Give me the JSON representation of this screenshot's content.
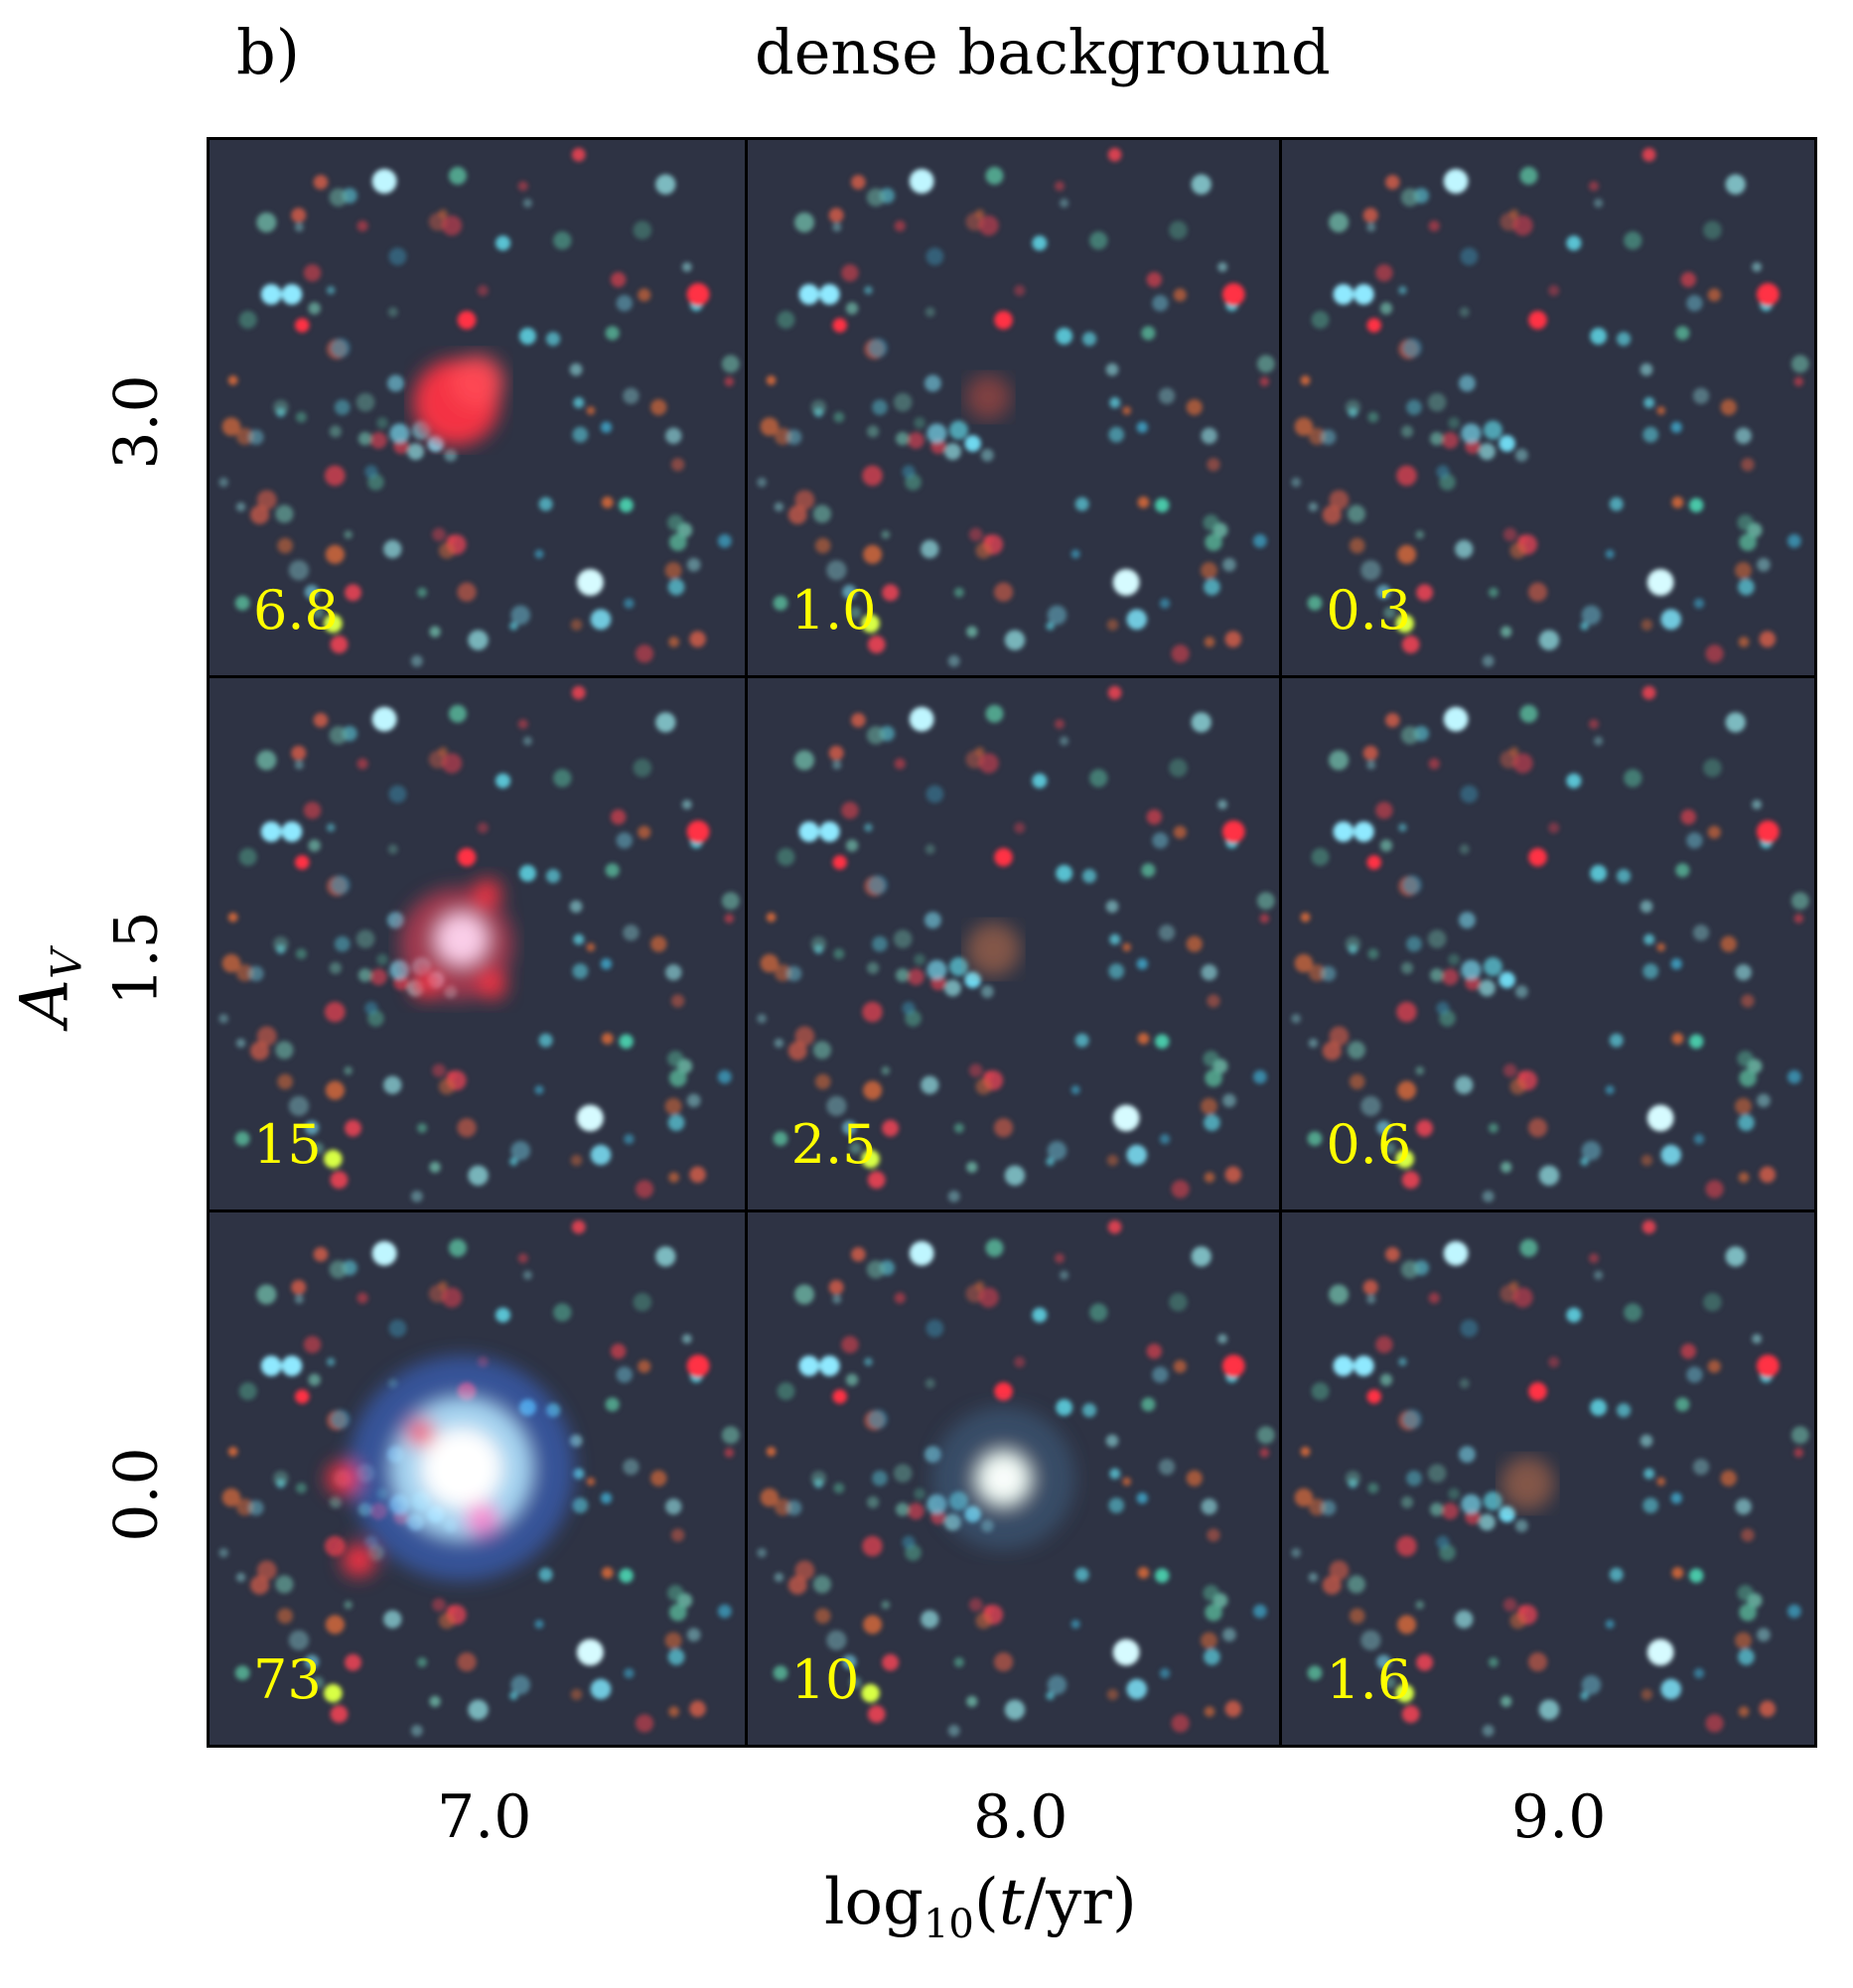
{
  "figure": {
    "panel_tag": "b)",
    "title": "dense background",
    "x_axis_label": "log10(t/yr)",
    "y_axis_label": "AV"
  },
  "columns": [
    "7.0",
    "8.0",
    "9.0"
  ],
  "rows": [
    "3.0",
    "1.5",
    "0.0"
  ],
  "panels": [
    {
      "av": "3.0",
      "age": "7.0",
      "flux_label": "6.8",
      "cluster": "red"
    },
    {
      "av": "3.0",
      "age": "8.0",
      "flux_label": "1.0",
      "cluster": "faint-red"
    },
    {
      "av": "3.0",
      "age": "9.0",
      "flux_label": "0.3",
      "cluster": "none"
    },
    {
      "av": "1.5",
      "age": "7.0",
      "flux_label": "15",
      "cluster": "pink-white"
    },
    {
      "av": "1.5",
      "age": "8.0",
      "flux_label": "2.5",
      "cluster": "faint-orange"
    },
    {
      "av": "1.5",
      "age": "9.0",
      "flux_label": "0.6",
      "cluster": "none"
    },
    {
      "av": "0.0",
      "age": "7.0",
      "flux_label": "73",
      "cluster": "bright-blue-white"
    },
    {
      "av": "0.0",
      "age": "8.0",
      "flux_label": "10",
      "cluster": "white-compact"
    },
    {
      "av": "0.0",
      "age": "9.0",
      "flux_label": "1.6",
      "cluster": "faint-orange"
    }
  ],
  "colors": {
    "flux_label": "#ffff00",
    "background": "#2e3344"
  }
}
